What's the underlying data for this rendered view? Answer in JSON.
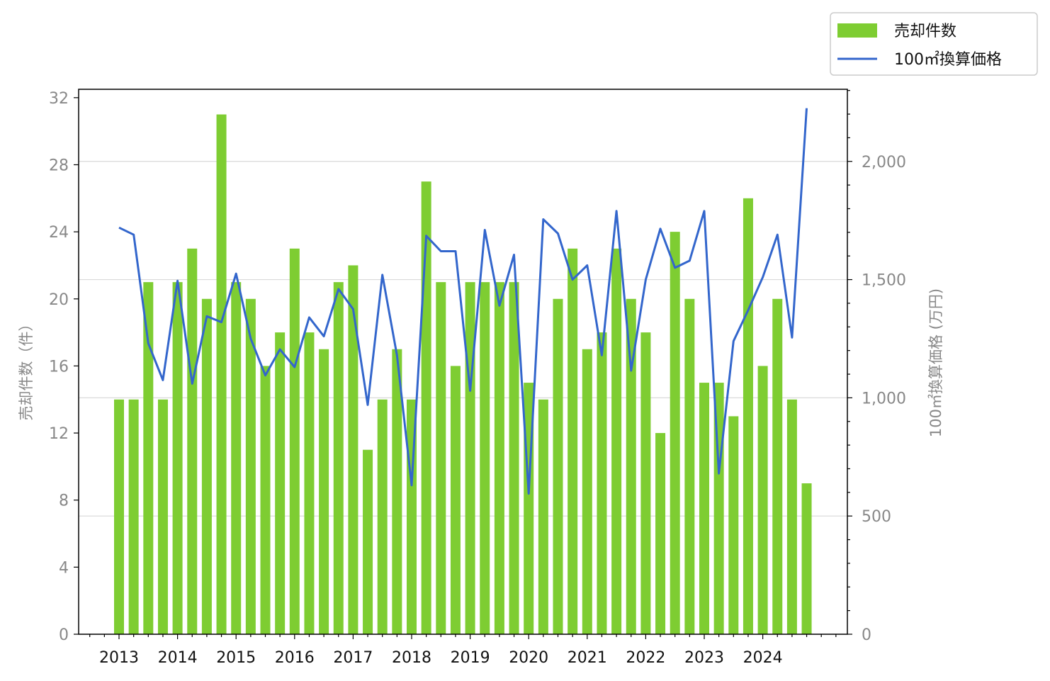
{
  "chart_data": {
    "type": "bar",
    "x_ticks": [
      "2013",
      "2014",
      "2015",
      "2016",
      "2017",
      "2018",
      "2019",
      "2020",
      "2021",
      "2022",
      "2023",
      "2024"
    ],
    "series": [
      {
        "name": "売却件数",
        "type": "bar",
        "axis": "left",
        "color": "#7ecd32",
        "values": [
          14,
          14,
          21,
          14,
          21,
          23,
          20,
          31,
          21,
          20,
          16,
          18,
          23,
          18,
          17,
          21,
          22,
          11,
          14,
          17,
          14,
          27,
          21,
          16,
          21,
          21,
          21,
          21,
          15,
          14,
          20,
          23,
          17,
          18,
          23,
          20,
          18,
          12,
          24,
          20,
          15,
          15,
          13,
          26,
          16,
          20,
          14,
          9
        ]
      },
      {
        "name": "100㎡換算価格",
        "type": "line",
        "axis": "right",
        "color": "#3366cc",
        "values": [
          1720,
          1690,
          1230,
          1075,
          1495,
          1060,
          1345,
          1320,
          1525,
          1250,
          1095,
          1205,
          1130,
          1340,
          1260,
          1460,
          1375,
          970,
          1520,
          1180,
          630,
          1685,
          1620,
          1620,
          1030,
          1710,
          1390,
          1605,
          595,
          1755,
          1695,
          1500,
          1560,
          1180,
          1790,
          1115,
          1500,
          1715,
          1550,
          1580,
          1790,
          680,
          1240,
          1370,
          1510,
          1690,
          1255,
          2225
        ]
      }
    ],
    "left_axis": {
      "label": "売却件数（件）",
      "range": [
        0,
        32.5
      ],
      "ticks": [
        "0",
        "4",
        "8",
        "12",
        "16",
        "20",
        "24",
        "28",
        "32"
      ]
    },
    "right_axis": {
      "label": "100㎡換算価格 (万円)",
      "range": [
        0,
        2305
      ],
      "ticks": [
        "0",
        "500",
        "1,000",
        "1,500",
        "2,000"
      ]
    },
    "grid": "horizontal, right axis major ticks",
    "legend_position": "top-right, outside plot"
  }
}
